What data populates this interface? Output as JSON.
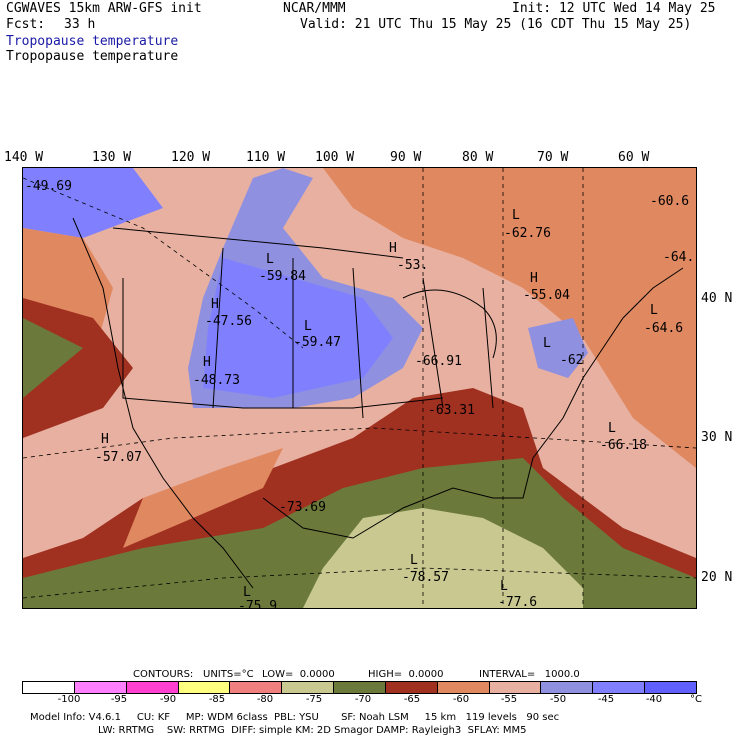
{
  "header": {
    "model": "CGWAVES 15km ARW-GFS init",
    "org": "NCAR/MMM",
    "init": "Init: 12 UTC Wed 14 May 25",
    "fcst_label": "Fcst:",
    "fcst_value": "33 h",
    "valid": "Valid: 21 UTC Thu 15 May 25 (16 CDT Thu 15 May 25)",
    "field_title_1": "Tropopause temperature",
    "field_title_2": "Tropopause temperature"
  },
  "lon_labels": [
    "140 W",
    "130 W",
    "120 W",
    "110 W",
    "100 W",
    "90 W",
    "80 W",
    "70 W",
    "60 W"
  ],
  "lat_labels": [
    "40 N",
    "30 N",
    "20 N"
  ],
  "map_labels": [
    {
      "text": "-49.69"
    },
    {
      "text": "L"
    },
    {
      "text": "-59.84"
    },
    {
      "text": "H"
    },
    {
      "text": "-53."
    },
    {
      "text": "L"
    },
    {
      "text": "-62.76"
    },
    {
      "text": "-60.6"
    },
    {
      "text": "H"
    },
    {
      "text": "-47.56"
    },
    {
      "text": "L"
    },
    {
      "text": "-59.47"
    },
    {
      "text": "H"
    },
    {
      "text": "-55.04"
    },
    {
      "text": "-64."
    },
    {
      "text": "L"
    },
    {
      "text": "-64.6"
    },
    {
      "text": "H"
    },
    {
      "text": "-48.73"
    },
    {
      "text": "-66.91"
    },
    {
      "text": "L"
    },
    {
      "text": "-62"
    },
    {
      "text": "-63.31"
    },
    {
      "text": "H"
    },
    {
      "text": "-57.07"
    },
    {
      "text": "L"
    },
    {
      "text": "-66.18"
    },
    {
      "text": "-73.69"
    },
    {
      "text": "L"
    },
    {
      "text": "-78.57"
    },
    {
      "text": "L"
    },
    {
      "text": "-77.6"
    },
    {
      "text": "L"
    },
    {
      "text": "-75.9"
    }
  ],
  "footer": {
    "contours_label": "CONTOURS:",
    "units": "UNITS=°C",
    "low": "LOW=  0.0000",
    "high": "HIGH=  0.0000",
    "interval": "INTERVAL=   1000.0",
    "colorbar_ticks": [
      "-100",
      "-95",
      "-90",
      "-85",
      "-80",
      "-75",
      "-70",
      "-65",
      "-60",
      "-55",
      "-50",
      "-45",
      "-40",
      "°C"
    ],
    "colorbar_colors": [
      "#ffffff",
      "#ff80ff",
      "#ff40d0",
      "#ffff80",
      "#f08080",
      "#c8c890",
      "#6b7a3a",
      "#a03020",
      "#e08860",
      "#e8b0a0",
      "#9090e0",
      "#8080ff",
      "#6060ff"
    ],
    "line1": "Model Info: V4.6.1     CU: KF     MP: WDM 6class  PBL: YSU       SF: Noah LSM     15 km   119 levels   90 sec",
    "line2": "LW: RRTMG    SW: RRTMG  DIFF: simple KM: 2D Smagor DAMP: Rayleigh3  SFLAY: MM5"
  }
}
